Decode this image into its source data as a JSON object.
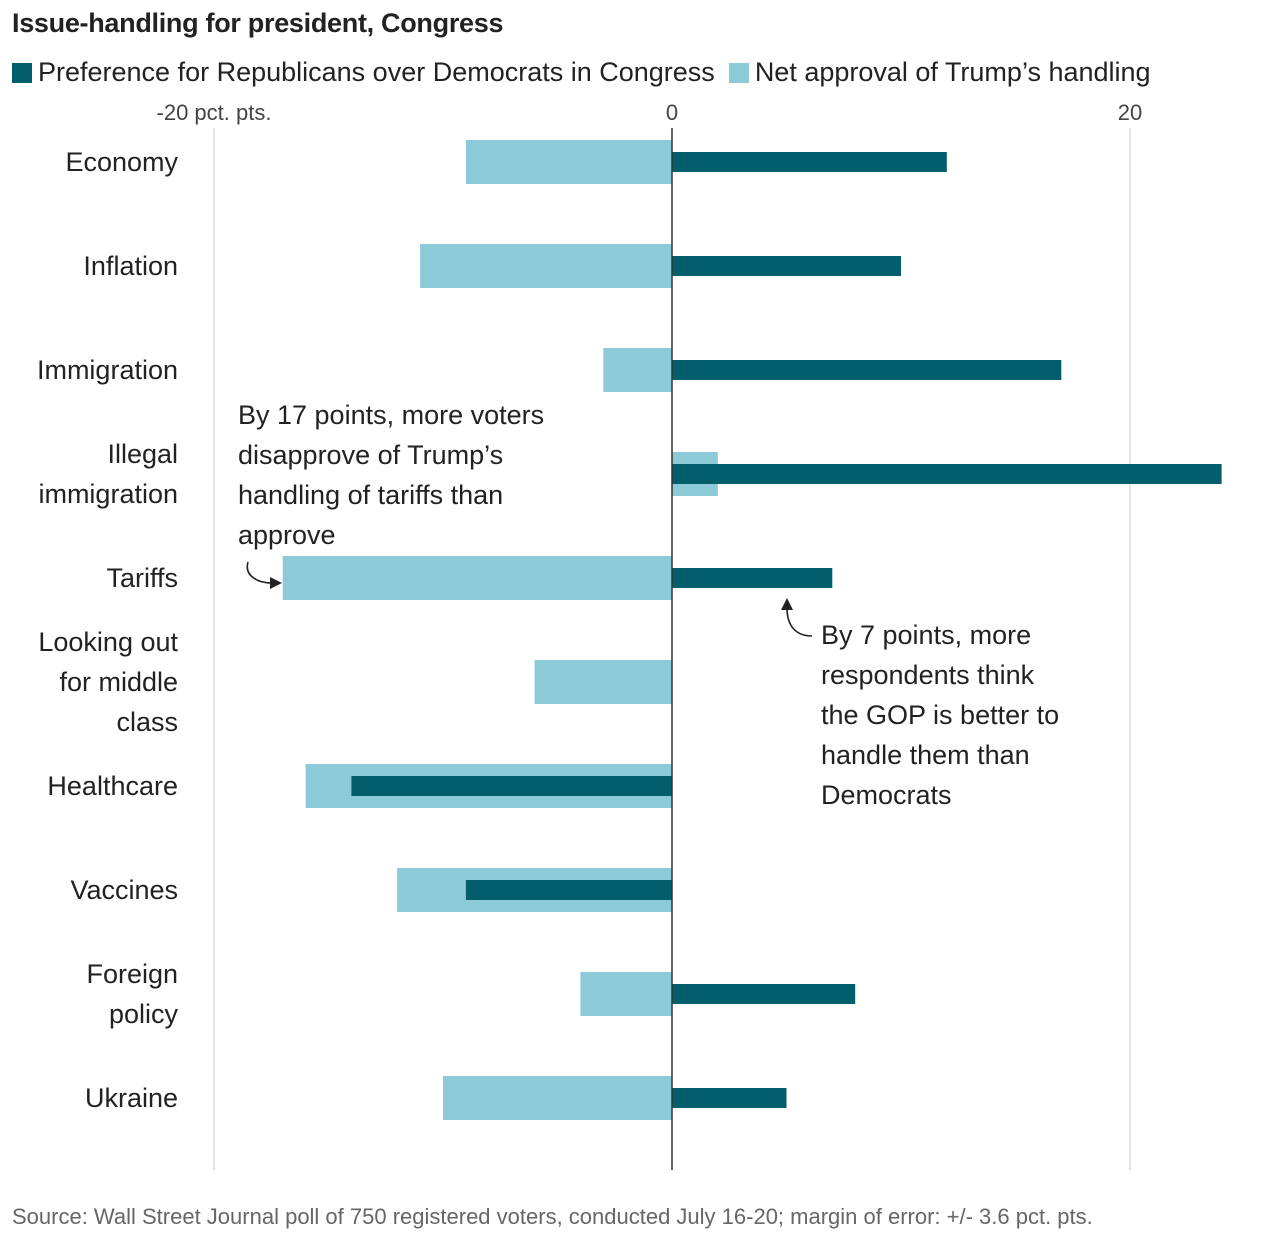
{
  "title": "Issue-handling for president, Congress",
  "legend": [
    {
      "label": "Preference for Republicans over Democrats in Congress",
      "color": "#035e6b"
    },
    {
      "label": "Net approval of Trump’s handling",
      "color": "#8ccad8"
    }
  ],
  "source": "Source: Wall Street Journal poll of 750 registered voters, conducted July 16-20; margin of error: +/- 3.6 pct. pts.",
  "chart_data": {
    "type": "bar",
    "orientation": "horizontal",
    "categories": [
      [
        "Economy"
      ],
      [
        "Inflation"
      ],
      [
        "Immigration"
      ],
      [
        "Illegal",
        "immigration"
      ],
      [
        "Tariffs"
      ],
      [
        "Looking out",
        "for middle",
        "class"
      ],
      [
        "Healthcare"
      ],
      [
        "Vaccines"
      ],
      [
        "Foreign",
        "policy"
      ],
      [
        "Ukraine"
      ]
    ],
    "series": [
      {
        "name": "Net approval of Trump’s handling",
        "color": "#8ccad8",
        "values": [
          -9,
          -11,
          -3,
          2,
          -17,
          -6,
          -16,
          -12,
          -4,
          -10
        ]
      },
      {
        "name": "Preference for Republicans over Democrats in Congress",
        "color": "#035e6b",
        "values": [
          12,
          10,
          17,
          24,
          7,
          0,
          -14,
          -9,
          8,
          5
        ]
      }
    ],
    "xlim": [
      -20,
      24
    ],
    "ticks": [
      {
        "value": -20,
        "label": "-20 pct. pts."
      },
      {
        "value": 0,
        "label": "0"
      },
      {
        "value": 20,
        "label": "20"
      }
    ],
    "grid": true,
    "legend_position": "top",
    "annotations": [
      {
        "category": "Tariffs",
        "series": "Net approval of Trump’s handling",
        "lines": [
          "By 17 points, more voters",
          "disapprove of Trump’s",
          "handling of tariffs than",
          "approve"
        ]
      },
      {
        "category": "Tariffs",
        "series": "Preference for Republicans over Democrats in Congress",
        "lines": [
          "By 7 points, more",
          "respondents think",
          "the GOP is better to",
          "handle them than",
          "Democrats"
        ]
      }
    ]
  }
}
